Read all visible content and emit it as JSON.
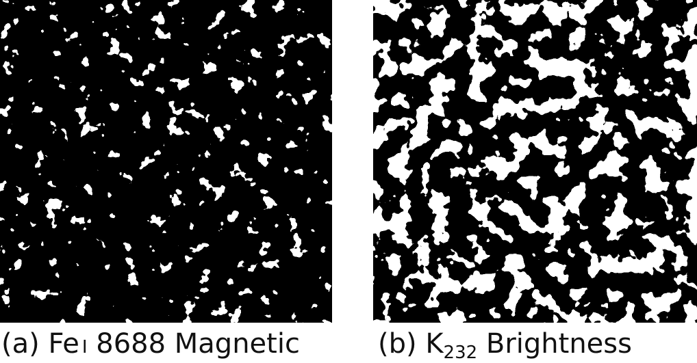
{
  "panels": [
    {
      "caption_parts": [
        "(a) Fe",
        "I",
        " 8688 Magnetic"
      ]
    },
    {
      "caption_parts": [
        "(b) K",
        "232",
        " Brightness"
      ]
    }
  ]
}
